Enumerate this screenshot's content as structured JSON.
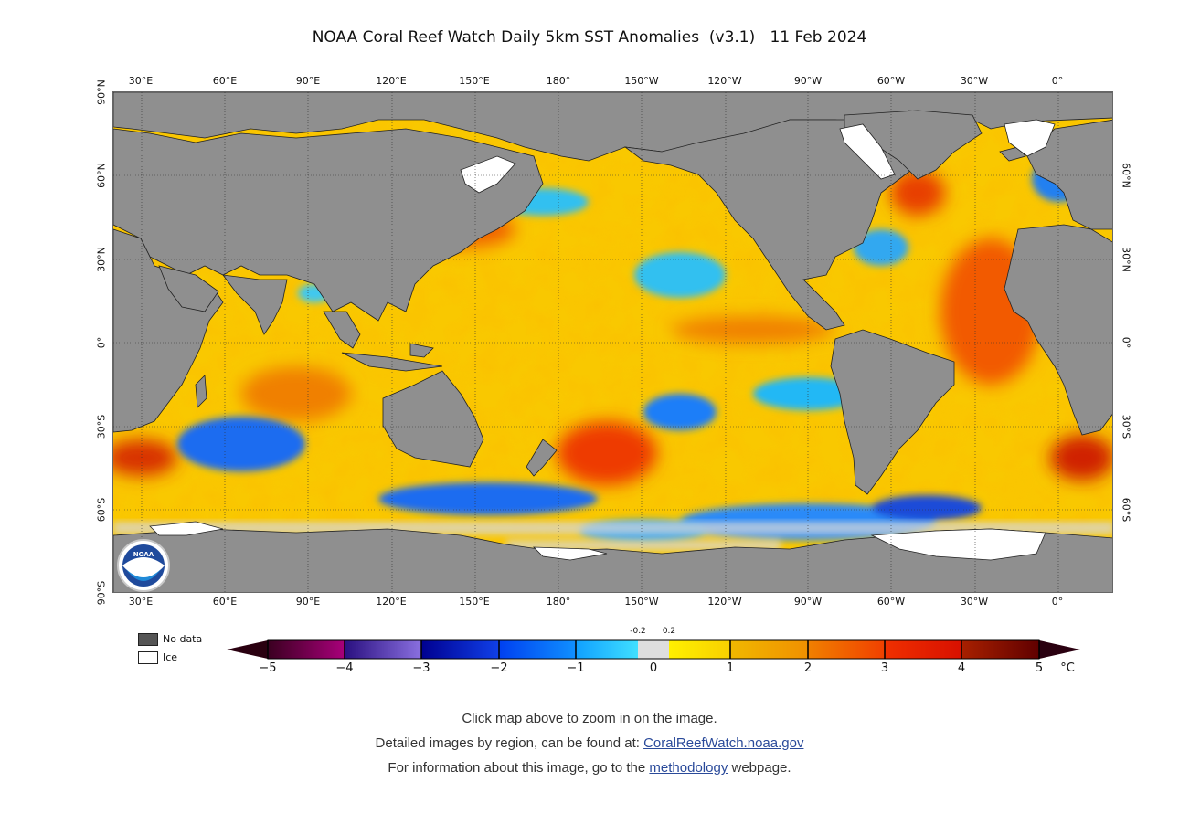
{
  "title": "NOAA Coral Reef Watch Daily 5km SST Anomalies  (v3.1)   11 Feb 2024",
  "map": {
    "lon_labels": [
      "30°E",
      "60°E",
      "90°E",
      "120°E",
      "150°E",
      "180°",
      "150°W",
      "120°W",
      "90°W",
      "60°W",
      "30°W",
      "0°"
    ],
    "lat_labels": [
      "90°N",
      "60°N",
      "30°N",
      "0°",
      "30°S",
      "60°S",
      "90°S"
    ],
    "logo_text": "NOAA",
    "colors": {
      "land": "#8f8f8f",
      "ice": "#ffffff",
      "ocean_base": "#f7c200"
    }
  },
  "legend": {
    "no_data_label": "No data",
    "ice_label": "Ice",
    "no_data_color": "#555555",
    "ice_color": "#ffffff"
  },
  "colorbar": {
    "tick_labels": [
      "−5",
      "−4",
      "−3",
      "−2",
      "−1",
      "0",
      "1",
      "2",
      "3",
      "4",
      "5"
    ],
    "unit": "°C",
    "small_labels": [
      "-0.2",
      "0.2"
    ]
  },
  "footer": {
    "line1": "Click map above to zoom in on the image.",
    "line2_prefix": "Detailed images by region, can be found at: ",
    "line2_link": "CoralReefWatch.noaa.gov",
    "line3_prefix": "For information about this image, go to the ",
    "line3_link": "methodology",
    "line3_suffix": " webpage."
  }
}
